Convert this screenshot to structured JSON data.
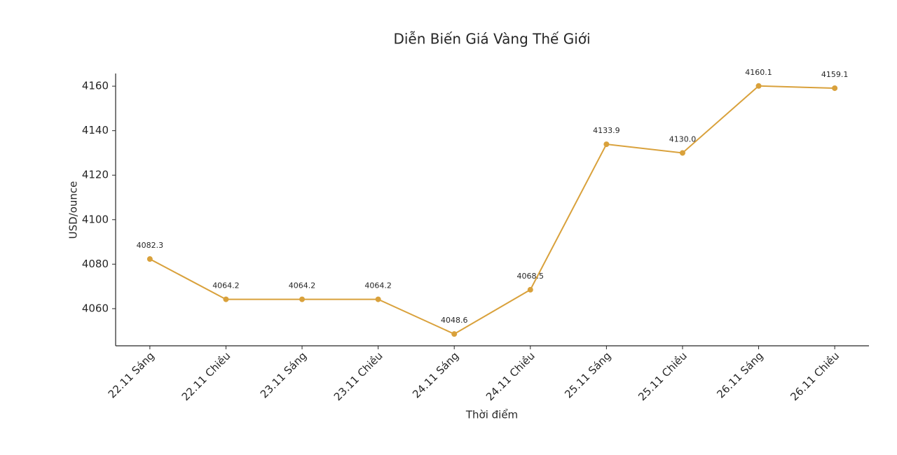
{
  "chart_data": {
    "type": "line",
    "title": "Diễn Biến Giá Vàng Thế Giới",
    "x_label": "Thời điểm",
    "y_label": "USD/ounce",
    "categories": [
      "22.11 Sáng",
      "22.11 Chiều",
      "23.11 Sáng",
      "23.11 Chiều",
      "24.11 Sáng",
      "24.11 Chiều",
      "25.11 Sáng",
      "25.11 Chiều",
      "26.11 Sáng",
      "26.11 Chiều"
    ],
    "values": [
      4082.3,
      4064.2,
      4064.2,
      4064.2,
      4048.6,
      4068.5,
      4133.9,
      4130.0,
      4160.1,
      4159.1
    ],
    "value_labels": [
      "4082.3",
      "4064.2",
      "4064.2",
      "4064.2",
      "4048.6",
      "4068.5",
      "4133.9",
      "4130.0",
      "4160.1",
      "4159.1"
    ],
    "color": "#d9a13b",
    "ylim": [
      4043.3,
      4165.7
    ],
    "yticks": [
      4060,
      4080,
      4100,
      4120,
      4140,
      4160
    ],
    "grid": false
  }
}
